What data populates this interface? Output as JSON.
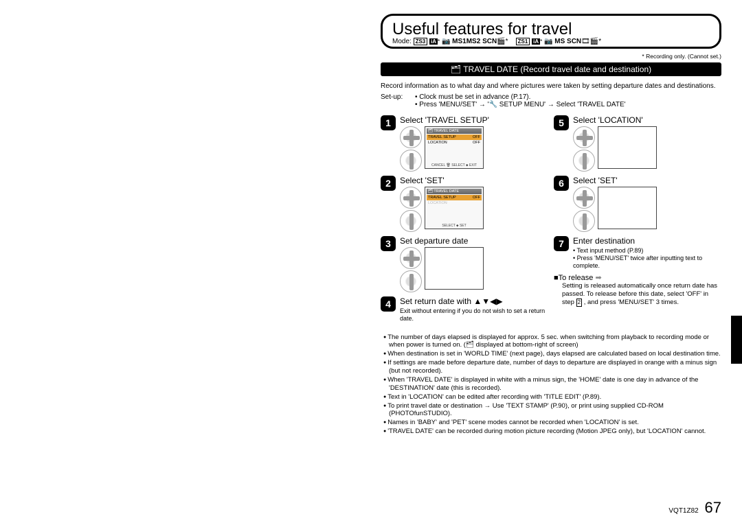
{
  "title": "Useful features for travel",
  "mode_label": "Mode:",
  "mode_boxes1": [
    "ZS3"
  ],
  "mode_text1": "iA* 📷 MS1 MS2 SCN 🎬*",
  "mode_boxes2": [
    "ZS1"
  ],
  "mode_text2": "iA* 📷 MS SCN 🎞 🎬*",
  "footnote": "* Recording only. (Cannot set.)",
  "section_header": "🗂 TRAVEL DATE (Record travel date and destination)",
  "intro": "Record information as to what day and where pictures were taken by setting departure dates and destinations.",
  "setup_label": "Set-up:",
  "setup_lines": [
    "• Clock must be set in advance (P.17).",
    "• Press 'MENU/SET' → '🔧 SETUP MENU' → Select 'TRAVEL DATE'"
  ],
  "steps_left": [
    {
      "n": "1",
      "title": "Select 'TRAVEL SETUP'",
      "screen": "menu1"
    },
    {
      "n": "2",
      "title": "Select 'SET'",
      "screen": "menu2"
    },
    {
      "n": "3",
      "title": "Set departure date",
      "screen": "blank"
    },
    {
      "n": "4",
      "title": "Set return date with ▲▼◀▶",
      "sub": "Exit without entering if you do not wish to set a return date."
    }
  ],
  "steps_right": [
    {
      "n": "5",
      "title": "Select 'LOCATION'",
      "screen": "blank"
    },
    {
      "n": "6",
      "title": "Select 'SET'",
      "screen": "blank"
    },
    {
      "n": "7",
      "title": "Enter destination",
      "sub": "• Text input method (P.89)\n• Press 'MENU/SET' twice after inputting text to complete."
    }
  ],
  "release_head": "■To release",
  "release_text": "Setting is released automatically once return date has passed. To release before this date, select 'OFF' in step 2 , and press 'MENU/SET' 3 times.",
  "notes": [
    "The number of days elapsed is displayed for approx. 5 sec. when switching from playback to recording mode or when power is turned on. (🗂 displayed at bottom-right of screen)",
    "When destination is set in 'WORLD TIME' (next page), days elapsed are calculated based on local destination time.",
    "If settings are made before departure date, number of days to departure are displayed in orange with a minus sign (but not recorded).",
    "When 'TRAVEL DATE' is displayed in white with a minus sign, the 'HOME' date is one day in advance of the 'DESTINATION' date (this is recorded).",
    "Text in 'LOCATION' can be edited after recording with 'TITLE EDIT' (P.89).",
    "To print travel date or destination → Use 'TEXT STAMP' (P.90), or print using supplied CD-ROM (PHOTOfunSTUDIO).",
    "Names in 'BABY' and 'PET' scene modes cannot be recorded when 'LOCATION' is set.",
    "'TRAVEL DATE' can be recorded during motion picture recording (Motion JPEG only), but 'LOCATION' cannot."
  ],
  "doc_id": "VQT1Z82",
  "page_num": "67",
  "screen1": {
    "head": "🗂 TRAVEL DATE",
    "rows": [
      [
        "TRAVEL SETUP",
        "OFF"
      ],
      [
        "LOCATION",
        "OFF"
      ]
    ],
    "foot": "CANCEL 🗑 SELECT ⬥ EXIT"
  },
  "screen2": {
    "head": "🗂 TRAVEL DATE",
    "rows": [
      [
        "TRAVEL SETUP",
        "OFF"
      ],
      [
        "LOCATION",
        ""
      ]
    ],
    "foot": "SELECT ⬥ SET"
  }
}
